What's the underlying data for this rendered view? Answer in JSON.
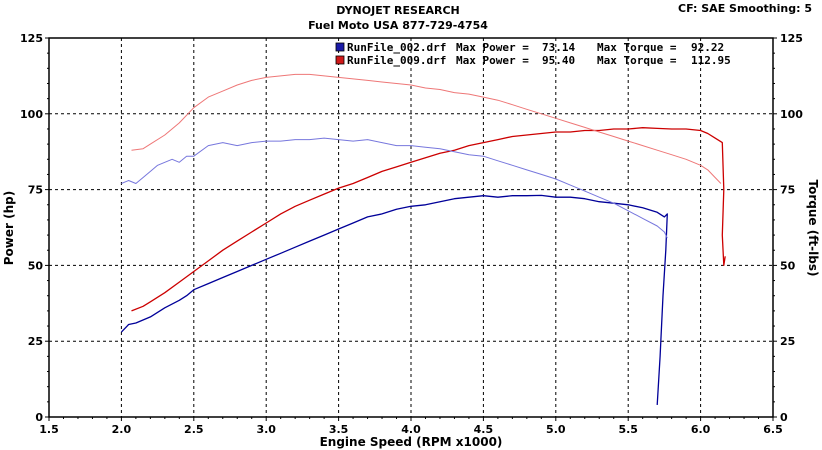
{
  "header": {
    "title": "DYNOJET RESEARCH",
    "subtitle": "Fuel Moto USA 877-729-4754",
    "settings": "CF: SAE  Smoothing: 5"
  },
  "chart_data": {
    "type": "line",
    "xlabel": "Engine Speed (RPM x1000)",
    "ylabel_left": "Power (hp)",
    "ylabel_right": "Torque (ft-lbs)",
    "xlim": [
      1.5,
      6.5
    ],
    "ylim": [
      0,
      125
    ],
    "x_ticks": [
      "1.5",
      "2.0",
      "2.5",
      "3.0",
      "3.5",
      "4.0",
      "4.5",
      "5.0",
      "5.5",
      "6.0",
      "6.5"
    ],
    "y_ticks": [
      "0",
      "25",
      "50",
      "75",
      "100",
      "125"
    ],
    "grid": true,
    "legend": [
      {
        "file": "RunFile_002.drf",
        "power_label": "Max Power =",
        "power": "73.14",
        "torque_label": "Max Torque =",
        "torque": "92.22",
        "color": "#1a1aa8"
      },
      {
        "file": "RunFile_009.drf",
        "power_label": "Max Power =",
        "power": "95.40",
        "torque_label": "Max Torque =",
        "torque": "112.95",
        "color": "#d01818"
      }
    ],
    "series": [
      {
        "measure": "power",
        "color": "#000099",
        "points": [
          [
            2.0,
            28
          ],
          [
            2.05,
            30.5
          ],
          [
            2.1,
            31
          ],
          [
            2.2,
            33
          ],
          [
            2.3,
            36
          ],
          [
            2.4,
            38.5
          ],
          [
            2.45,
            40
          ],
          [
            2.5,
            42
          ],
          [
            2.6,
            44
          ],
          [
            2.7,
            46
          ],
          [
            2.8,
            48
          ],
          [
            2.9,
            50
          ],
          [
            3.0,
            52
          ],
          [
            3.1,
            54
          ],
          [
            3.2,
            56
          ],
          [
            3.3,
            58
          ],
          [
            3.4,
            60
          ],
          [
            3.5,
            62
          ],
          [
            3.6,
            64
          ],
          [
            3.7,
            66
          ],
          [
            3.8,
            67
          ],
          [
            3.9,
            68.5
          ],
          [
            4.0,
            69.5
          ],
          [
            4.1,
            70
          ],
          [
            4.2,
            71
          ],
          [
            4.3,
            72
          ],
          [
            4.4,
            72.5
          ],
          [
            4.5,
            73
          ],
          [
            4.6,
            72.5
          ],
          [
            4.7,
            73
          ],
          [
            4.8,
            73
          ],
          [
            4.9,
            73.1
          ],
          [
            5.0,
            72.5
          ],
          [
            5.1,
            72.5
          ],
          [
            5.2,
            72
          ],
          [
            5.3,
            71
          ],
          [
            5.4,
            70.5
          ],
          [
            5.5,
            70
          ],
          [
            5.6,
            69
          ],
          [
            5.7,
            67.5
          ],
          [
            5.75,
            66
          ],
          [
            5.77,
            67
          ],
          [
            5.76,
            55
          ],
          [
            5.74,
            40
          ],
          [
            5.72,
            20
          ],
          [
            5.7,
            4
          ]
        ]
      },
      {
        "measure": "power",
        "color": "#cc0000",
        "points": [
          [
            2.07,
            35
          ],
          [
            2.15,
            36.5
          ],
          [
            2.2,
            38
          ],
          [
            2.3,
            41
          ],
          [
            2.4,
            44.5
          ],
          [
            2.5,
            48
          ],
          [
            2.6,
            51.5
          ],
          [
            2.7,
            55
          ],
          [
            2.8,
            58
          ],
          [
            2.9,
            61
          ],
          [
            3.0,
            64
          ],
          [
            3.1,
            67
          ],
          [
            3.2,
            69.5
          ],
          [
            3.3,
            71.5
          ],
          [
            3.4,
            73.5
          ],
          [
            3.5,
            75.5
          ],
          [
            3.6,
            77
          ],
          [
            3.7,
            79
          ],
          [
            3.8,
            81
          ],
          [
            3.9,
            82.5
          ],
          [
            4.0,
            84
          ],
          [
            4.1,
            85.5
          ],
          [
            4.2,
            87
          ],
          [
            4.3,
            88
          ],
          [
            4.4,
            89.5
          ],
          [
            4.5,
            90.5
          ],
          [
            4.6,
            91.5
          ],
          [
            4.7,
            92.5
          ],
          [
            4.8,
            93
          ],
          [
            4.9,
            93.5
          ],
          [
            5.0,
            94
          ],
          [
            5.1,
            94
          ],
          [
            5.2,
            94.5
          ],
          [
            5.3,
            94.5
          ],
          [
            5.4,
            95
          ],
          [
            5.5,
            95
          ],
          [
            5.6,
            95.4
          ],
          [
            5.7,
            95.2
          ],
          [
            5.8,
            95
          ],
          [
            5.9,
            95
          ],
          [
            6.0,
            94.5
          ],
          [
            6.05,
            93.5
          ],
          [
            6.1,
            92
          ],
          [
            6.15,
            90.5
          ],
          [
            6.16,
            75
          ],
          [
            6.15,
            60
          ],
          [
            6.16,
            50
          ],
          [
            6.17,
            53
          ]
        ]
      },
      {
        "measure": "torque",
        "color": "#7777dd",
        "points": [
          [
            2.0,
            77
          ],
          [
            2.05,
            78
          ],
          [
            2.1,
            77
          ],
          [
            2.15,
            79
          ],
          [
            2.2,
            81
          ],
          [
            2.25,
            83
          ],
          [
            2.3,
            84
          ],
          [
            2.35,
            85
          ],
          [
            2.4,
            84
          ],
          [
            2.45,
            86
          ],
          [
            2.5,
            86
          ],
          [
            2.6,
            89.5
          ],
          [
            2.7,
            90.5
          ],
          [
            2.8,
            89.5
          ],
          [
            2.9,
            90.5
          ],
          [
            3.0,
            91
          ],
          [
            3.1,
            91
          ],
          [
            3.2,
            91.5
          ],
          [
            3.3,
            91.5
          ],
          [
            3.4,
            92
          ],
          [
            3.5,
            91.5
          ],
          [
            3.6,
            91
          ],
          [
            3.7,
            91.5
          ],
          [
            3.8,
            90.5
          ],
          [
            3.9,
            89.5
          ],
          [
            4.0,
            89.5
          ],
          [
            4.1,
            89
          ],
          [
            4.2,
            88.5
          ],
          [
            4.3,
            87.5
          ],
          [
            4.4,
            86.5
          ],
          [
            4.5,
            86
          ],
          [
            4.6,
            84.5
          ],
          [
            4.7,
            83
          ],
          [
            4.8,
            81.5
          ],
          [
            4.9,
            80
          ],
          [
            5.0,
            78.5
          ],
          [
            5.1,
            76.5
          ],
          [
            5.2,
            74.5
          ],
          [
            5.3,
            72.5
          ],
          [
            5.4,
            70.5
          ],
          [
            5.5,
            68
          ],
          [
            5.6,
            65.5
          ],
          [
            5.7,
            63
          ],
          [
            5.75,
            61
          ],
          [
            5.77,
            59
          ]
        ]
      },
      {
        "measure": "torque",
        "color": "#ee7777",
        "points": [
          [
            2.07,
            88
          ],
          [
            2.15,
            88.5
          ],
          [
            2.2,
            90
          ],
          [
            2.3,
            93
          ],
          [
            2.4,
            97
          ],
          [
            2.5,
            102
          ],
          [
            2.6,
            105.5
          ],
          [
            2.7,
            107.5
          ],
          [
            2.8,
            109.5
          ],
          [
            2.9,
            111
          ],
          [
            3.0,
            112
          ],
          [
            3.1,
            112.5
          ],
          [
            3.2,
            113
          ],
          [
            3.3,
            113
          ],
          [
            3.4,
            112.5
          ],
          [
            3.5,
            112
          ],
          [
            3.6,
            111.5
          ],
          [
            3.7,
            111
          ],
          [
            3.8,
            110.5
          ],
          [
            3.9,
            110
          ],
          [
            4.0,
            109.5
          ],
          [
            4.1,
            108.5
          ],
          [
            4.2,
            108
          ],
          [
            4.3,
            107
          ],
          [
            4.4,
            106.5
          ],
          [
            4.5,
            105.5
          ],
          [
            4.6,
            104.5
          ],
          [
            4.7,
            103
          ],
          [
            4.8,
            101.5
          ],
          [
            4.9,
            100
          ],
          [
            5.0,
            98.5
          ],
          [
            5.1,
            97
          ],
          [
            5.2,
            95.5
          ],
          [
            5.3,
            94
          ],
          [
            5.4,
            92.5
          ],
          [
            5.5,
            91
          ],
          [
            5.6,
            89.5
          ],
          [
            5.7,
            88
          ],
          [
            5.8,
            86.5
          ],
          [
            5.9,
            85
          ],
          [
            6.0,
            83
          ],
          [
            6.05,
            81.5
          ],
          [
            6.1,
            79
          ],
          [
            6.14,
            77
          ]
        ]
      }
    ]
  }
}
